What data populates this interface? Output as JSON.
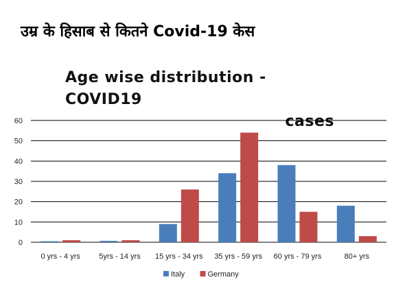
{
  "headline": "उम्र के हिसाब से कितने Covid-19 केस",
  "chart_data": {
    "type": "bar",
    "title_line1": "Age wise distribution - COVID19",
    "title_line2": "cases",
    "categories": [
      "0 yrs - 4 yrs",
      "5yrs - 14 yrs",
      "15 yrs - 34 yrs",
      "35 yrs - 59 yrs",
      "60 yrs - 79 yrs",
      "80+ yrs"
    ],
    "series": [
      {
        "name": "Italy",
        "color": "#4a7ebb",
        "values": [
          0.5,
          0.7,
          9,
          34,
          38,
          18
        ]
      },
      {
        "name": "Germany",
        "color": "#be4b48",
        "values": [
          1,
          1,
          26,
          54,
          15,
          3
        ]
      }
    ],
    "ylim": [
      0,
      60
    ],
    "yticks": [
      0,
      10,
      20,
      30,
      40,
      50,
      60
    ],
    "grid": true,
    "legend_position": "bottom"
  }
}
